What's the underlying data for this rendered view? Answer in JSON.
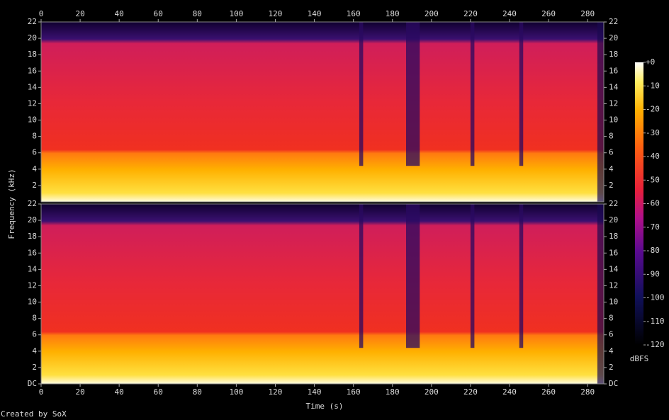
{
  "chart_data": {
    "type": "spectrogram",
    "x_label": "Time (s)",
    "y_label": "Frequency (kHz)",
    "credit": "Created by SoX",
    "xlim": [
      0,
      288.3
    ],
    "xticks": [
      0,
      20,
      40,
      60,
      80,
      100,
      120,
      140,
      160,
      180,
      200,
      220,
      240,
      260,
      280
    ],
    "panels": [
      {
        "ylim": [
          0,
          22
        ],
        "yticks": [
          2,
          4,
          6,
          8,
          10,
          12,
          14,
          16,
          18,
          20,
          22
        ]
      },
      {
        "ylim": [
          0,
          22
        ],
        "yticks": [
          {
            "value": 0,
            "label": "DC"
          },
          2,
          4,
          6,
          8,
          10,
          12,
          14,
          16,
          18,
          20,
          22
        ]
      }
    ],
    "colorbar": {
      "label": "dBFS",
      "lim": [
        -120,
        0
      ],
      "ticks": [
        {
          "value": 0,
          "label": "+0"
        },
        -10,
        -20,
        -30,
        -40,
        -50,
        -60,
        -70,
        -80,
        -90,
        -100,
        -110,
        -120
      ]
    }
  }
}
